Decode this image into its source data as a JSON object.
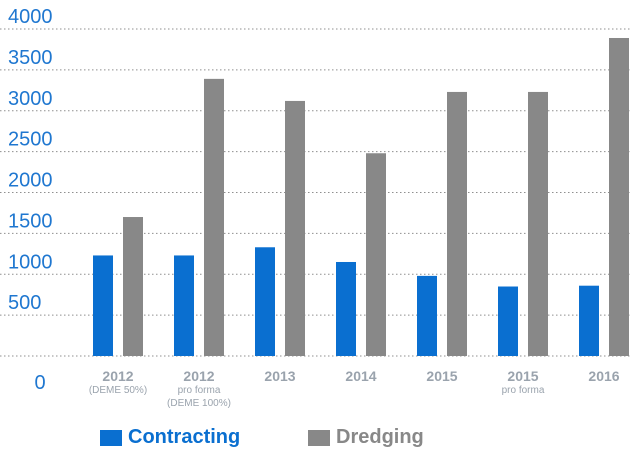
{
  "chart_data": {
    "type": "bar",
    "categories": [
      "2012",
      "2012",
      "2013",
      "2014",
      "2015",
      "2015",
      "2016"
    ],
    "category_sublabels": [
      [
        "(DEME 50%)"
      ],
      [
        "pro forma",
        "(DEME 100%)"
      ],
      [],
      [],
      [],
      [
        "pro forma"
      ],
      []
    ],
    "series": [
      {
        "name": "Contracting",
        "color": "#0a6fd0",
        "values": [
          1230,
          1230,
          1330,
          1150,
          980,
          850,
          860
        ]
      },
      {
        "name": "Dredging",
        "color": "#888888",
        "values": [
          1700,
          3390,
          3120,
          2480,
          3230,
          3230,
          3890
        ]
      }
    ],
    "y_ticks": [
      "500",
      "1000",
      "1500",
      "2000",
      "2500",
      "3000",
      "3500",
      "4000"
    ],
    "y_zero_label": "0",
    "ylim": [
      0,
      4000
    ],
    "grid": true,
    "legend_position": "bottom"
  },
  "legend": {
    "items": [
      {
        "label": "Contracting",
        "color": "#0a6fd0",
        "text_color": "#0a6fd0"
      },
      {
        "label": "Dredging",
        "color": "#888888",
        "text_color": "#888888"
      }
    ]
  }
}
